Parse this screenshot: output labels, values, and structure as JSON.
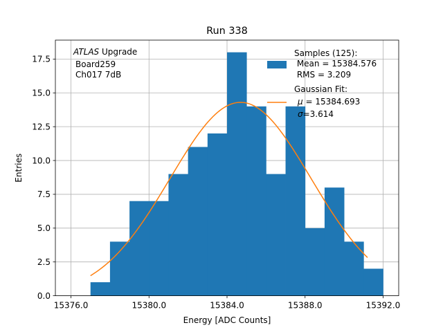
{
  "chart_data": {
    "type": "bar",
    "title": "Run 338",
    "xlabel": "Energy [ADC Counts]",
    "ylabel": "Entries",
    "xlim": [
      15375.2,
      15392.8
    ],
    "ylim": [
      0,
      18.9
    ],
    "grid": true,
    "x_ticks": [
      15376.0,
      15380.0,
      15384.0,
      15388.0,
      15392.0
    ],
    "x_tick_labels": [
      "15376.0",
      "15380.0",
      "15384.0",
      "15388.0",
      "15392.0"
    ],
    "y_ticks": [
      0.0,
      2.5,
      5.0,
      7.5,
      10.0,
      12.5,
      15.0,
      17.5
    ],
    "y_tick_labels": [
      "0.0",
      "2.5",
      "5.0",
      "7.5",
      "10.0",
      "12.5",
      "15.0",
      "17.5"
    ],
    "histogram": {
      "series_name": "Samples",
      "bin_edges": [
        15377,
        15378,
        15379,
        15380,
        15381,
        15382,
        15383,
        15384,
        15385,
        15386,
        15387,
        15388,
        15389,
        15390,
        15391,
        15392
      ],
      "counts": [
        1,
        4,
        7,
        7,
        9,
        11,
        12,
        18,
        14,
        9,
        14,
        5,
        8,
        4,
        2
      ],
      "color": "#1f77b4"
    },
    "fit": {
      "series_name": "Gaussian Fit",
      "mu": 15384.693,
      "sigma": 3.614,
      "amplitude": 14.3,
      "x_range": [
        15377.0,
        15391.2
      ],
      "color": "#ff7f0e"
    },
    "annotation_lines": [
      "ATLAS",
      " Upgrade",
      "Board259",
      "Ch017 7dB"
    ],
    "legend": {
      "position": "top-right",
      "samples_lines": [
        "Samples (125):",
        " Mean = 15384.576",
        " RMS = 3.209"
      ],
      "fit_lines": [
        "Gaussian Fit:",
        "μ",
        " = 15384.693",
        "σ",
        "=3.614"
      ]
    }
  }
}
